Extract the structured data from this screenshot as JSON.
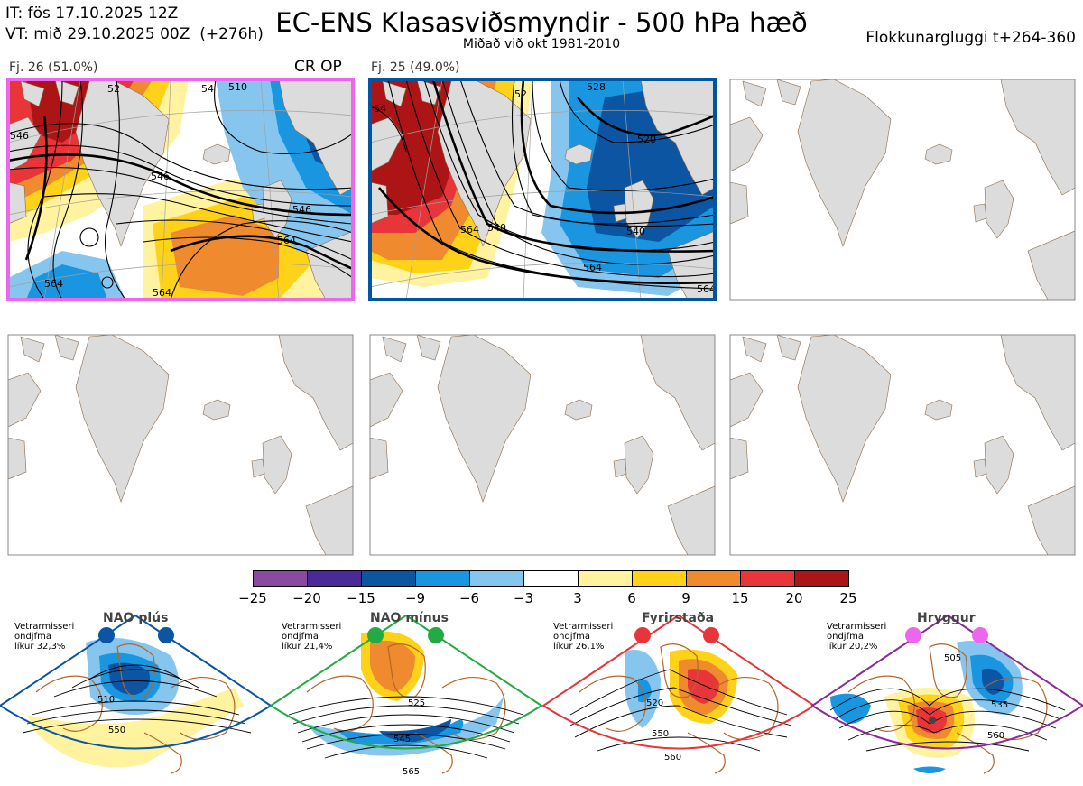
{
  "header": {
    "it_line": "IT: fös 17.10.2025 12Z",
    "vt_line": "VT: mið 29.10.2025 00Z  (+276h)",
    "title": "EC-ENS Klasasviðsmyndir - 500 hPa hæð",
    "subtitle": "Miðað við okt 1981-2010",
    "window": "Flokkunargluggi t+264-360"
  },
  "panels": [
    {
      "label": "Fj. 26 (51.0%)",
      "tag": "CR OP",
      "border": "#ee66ee",
      "contours": [
        "546",
        "546",
        "564",
        "564",
        "510",
        "52",
        "546",
        "54",
        "564"
      ]
    },
    {
      "label": "Fj. 25 (49.0%)",
      "tag": "",
      "border": "#0055a0",
      "contours": [
        "528",
        "520",
        "540",
        "540",
        "564",
        "564",
        "564",
        "52",
        "54"
      ]
    }
  ],
  "colorbar": {
    "ticks": [
      "−25",
      "−20",
      "−15",
      "−9",
      "−6",
      "−3",
      "3",
      "6",
      "9",
      "15",
      "20",
      "25"
    ],
    "colors": [
      "#8a4aa0",
      "#4a2a9a",
      "#0b55a3",
      "#1a95e0",
      "#86c6ee",
      "#ffffff",
      "#fff3a0",
      "#ffd21a",
      "#f08a2e",
      "#e8353a",
      "#ac1416"
    ]
  },
  "climate_regimes": [
    {
      "name": "NAO plús",
      "vote_lines": [
        "Vetrarmisseri",
        "ondjfma",
        "líkur 32,3%"
      ],
      "dot_color": "#0b55a3",
      "edge_color": "#0b55a3",
      "contours": [
        "510",
        "550"
      ]
    },
    {
      "name": "NAO mínus",
      "vote_lines": [
        "Vetrarmisseri",
        "ondjfma",
        "líkur 21,4%"
      ],
      "dot_color": "#22aa44",
      "edge_color": "#22aa44",
      "contours": [
        "525",
        "545",
        "565"
      ]
    },
    {
      "name": "Fyrirstaða",
      "vote_lines": [
        "Vetrarmisseri",
        "ondjfma",
        "líkur 26,1%"
      ],
      "dot_color": "#e8353a",
      "edge_color": "#e8353a",
      "contours": [
        "520",
        "550",
        "560"
      ]
    },
    {
      "name": "Hryggur",
      "vote_lines": [
        "Vetrarmisseri",
        "ondjfma",
        "líkur 20,2%"
      ],
      "dot_color": "#ee66ee",
      "edge_color": "#8a2a9a",
      "contours": [
        "505",
        "535",
        "560"
      ]
    }
  ]
}
